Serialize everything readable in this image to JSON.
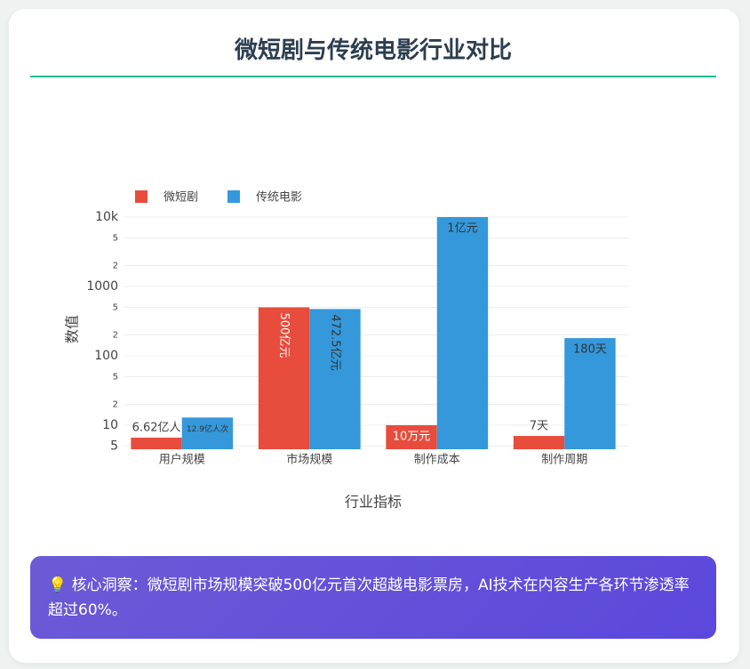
{
  "chart_data": {
    "type": "bar",
    "title": "微短剧与传统电影行业对比",
    "categories": [
      "用户规模",
      "市场规模",
      "制作成本",
      "制作周期"
    ],
    "series": [
      {
        "name": "微短剧",
        "color": "#e74c3c",
        "values": [
          6.62,
          500,
          10,
          7
        ],
        "value_labels": [
          "6.62亿人",
          "500亿元",
          "10万元",
          "7天"
        ]
      },
      {
        "name": "传统电影",
        "color": "#3498db",
        "values": [
          12.9,
          472.5,
          10000,
          180
        ],
        "value_labels": [
          "12.9亿人次",
          "472.5亿元",
          "1亿元",
          "180天"
        ]
      }
    ],
    "xlabel": "行业指标",
    "ylabel": "数值",
    "log_scale": true,
    "grid": true,
    "legend": "top-left",
    "ylim": [
      4.5,
      10000
    ],
    "yticks": [
      5,
      10,
      {
        "value": 20,
        "label": "2"
      },
      {
        "value": 50,
        "label": "5"
      },
      100,
      {
        "value": 200,
        "label": "2"
      },
      {
        "value": 500,
        "label": "5"
      },
      1000,
      {
        "value": 2000,
        "label": "2"
      },
      {
        "value": 5000,
        "label": "5"
      },
      {
        "value": 10000,
        "label": "10k"
      }
    ]
  },
  "insight": "💡 核心洞察：微短剧市场规模突破500亿元首次超越电影票房，AI技术在内容生产各环节渗透率超过60%。"
}
